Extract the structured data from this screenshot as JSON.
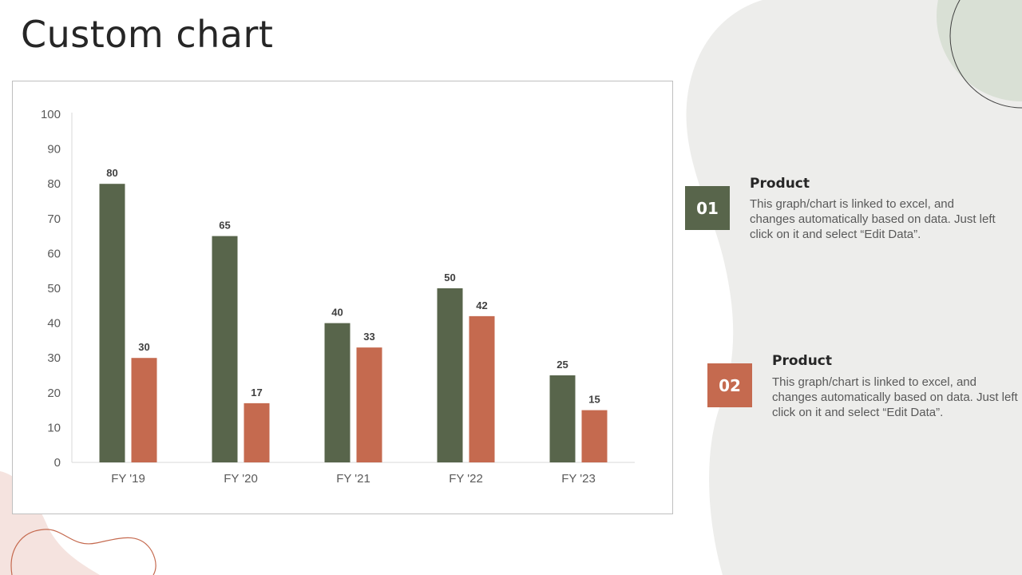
{
  "page": {
    "title": "Custom chart"
  },
  "colors": {
    "series1": "#58654b",
    "series2": "#c56a4f",
    "blob": "#ededeb",
    "circle": "#d9e0d5",
    "accent_pink": "#f5e3df",
    "accent_line": "#c56a4f"
  },
  "chart_data": {
    "type": "bar",
    "title": "",
    "xlabel": "",
    "ylabel": "",
    "categories": [
      "FY '19",
      "FY '20",
      "FY '21",
      "FY '22",
      "FY '23"
    ],
    "series": [
      {
        "name": "Product 01",
        "values": [
          80,
          65,
          40,
          50,
          25
        ]
      },
      {
        "name": "Product 02",
        "values": [
          30,
          17,
          33,
          42,
          15
        ]
      }
    ],
    "ylim": [
      0,
      100
    ],
    "yticks": [
      0,
      10,
      20,
      30,
      40,
      50,
      60,
      70,
      80,
      90,
      100
    ],
    "grid": false,
    "data_labels": true
  },
  "info": [
    {
      "number": "01",
      "title": "Product",
      "text": "This graph/chart is linked to excel, and changes automatically based on data. Just left click on it and select “Edit Data”."
    },
    {
      "number": "02",
      "title": "Product",
      "text": "This graph/chart is linked to excel, and changes automatically based on data. Just left click on it and select “Edit Data”."
    }
  ]
}
